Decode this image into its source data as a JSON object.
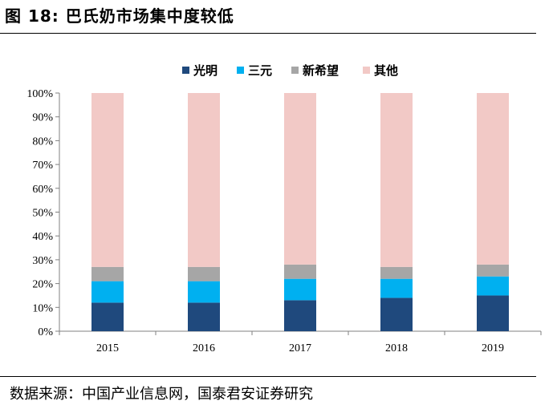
{
  "figure": {
    "title": "图 18:  巴氏奶市场集中度较低",
    "source": "数据来源：中国产业信息网，国泰君安证券研究"
  },
  "chart_data": {
    "type": "bar",
    "stacked": true,
    "categories": [
      "2015",
      "2016",
      "2017",
      "2018",
      "2019"
    ],
    "series": [
      {
        "name": "光明",
        "color": "#1f497d",
        "values": [
          12,
          12,
          13,
          14,
          15
        ]
      },
      {
        "name": "三元",
        "color": "#00b0f0",
        "values": [
          9,
          9,
          9,
          8,
          8
        ]
      },
      {
        "name": "新希望",
        "color": "#a6a6a6",
        "values": [
          6,
          6,
          6,
          5,
          5
        ]
      },
      {
        "name": "其他",
        "color": "#f2c9c6",
        "values": [
          73,
          73,
          72,
          73,
          72
        ]
      }
    ],
    "ylim": [
      0,
      100
    ],
    "yticks": [
      "0%",
      "10%",
      "20%",
      "30%",
      "40%",
      "50%",
      "60%",
      "70%",
      "80%",
      "90%",
      "100%"
    ],
    "legend_position": "top-center",
    "grid": false
  }
}
